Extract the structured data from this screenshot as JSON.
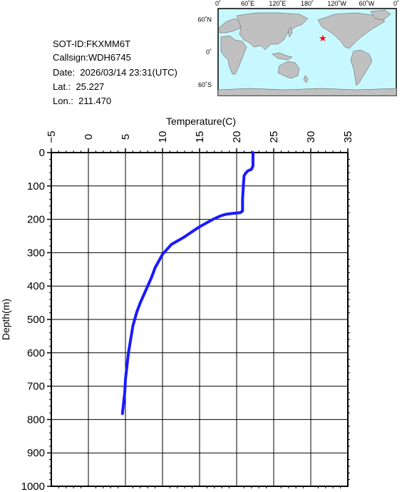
{
  "info": {
    "sot_id": "SOT-ID:FKXMM6T",
    "callsign": "Callsign:WDH6745",
    "date": "Date:  2026/03/14 23:31(UTC)",
    "lat": "Lat.:  25.227",
    "lon": "Lon.:  211.470"
  },
  "map": {
    "lon_labels": [
      "0˚",
      "60˚E",
      "120˚E",
      "180˚",
      "120˚W",
      "60˚W",
      "0˚"
    ],
    "lat_labels": [
      "60˚N",
      "0˚",
      "60˚S"
    ],
    "ocean_color": "#c8f8ff",
    "land_color": "#c0c0c0",
    "marker_color": "#ff0000",
    "marker": {
      "lat": 25.227,
      "lon": 211.47
    }
  },
  "chart_data": {
    "type": "line",
    "xlabel": "Temperature(C)",
    "ylabel": "Depth(m)",
    "xlim": [
      -5,
      35
    ],
    "ylim": [
      1000,
      0
    ],
    "x_ticks": [
      "-5",
      "0",
      "5",
      "10",
      "15",
      "20",
      "25",
      "30",
      "35"
    ],
    "y_ticks": [
      "0",
      "100",
      "200",
      "300",
      "400",
      "500",
      "600",
      "700",
      "800",
      "900",
      "1000"
    ],
    "grid": true,
    "series": [
      {
        "color": "#1a1aff",
        "points": [
          [
            22.2,
            0
          ],
          [
            22.2,
            20
          ],
          [
            22.2,
            40
          ],
          [
            22.0,
            50
          ],
          [
            21.5,
            55
          ],
          [
            21.2,
            62
          ],
          [
            21.0,
            70
          ],
          [
            20.9,
            100
          ],
          [
            20.8,
            140
          ],
          [
            20.8,
            175
          ],
          [
            20.5,
            180
          ],
          [
            19.5,
            182
          ],
          [
            18.5,
            185
          ],
          [
            17.8,
            190
          ],
          [
            16.8,
            200
          ],
          [
            16.0,
            210
          ],
          [
            14.8,
            225
          ],
          [
            13.8,
            240
          ],
          [
            12.8,
            255
          ],
          [
            12.0,
            265
          ],
          [
            11.2,
            275
          ],
          [
            10.8,
            285
          ],
          [
            10.0,
            305
          ],
          [
            9.5,
            325
          ],
          [
            9.0,
            345
          ],
          [
            8.5,
            375
          ],
          [
            8.0,
            400
          ],
          [
            7.5,
            425
          ],
          [
            7.0,
            450
          ],
          [
            6.5,
            480
          ],
          [
            6.0,
            520
          ],
          [
            5.7,
            560
          ],
          [
            5.4,
            600
          ],
          [
            5.2,
            640
          ],
          [
            5.0,
            680
          ],
          [
            4.9,
            720
          ],
          [
            4.7,
            760
          ],
          [
            4.6,
            782
          ]
        ]
      }
    ]
  }
}
